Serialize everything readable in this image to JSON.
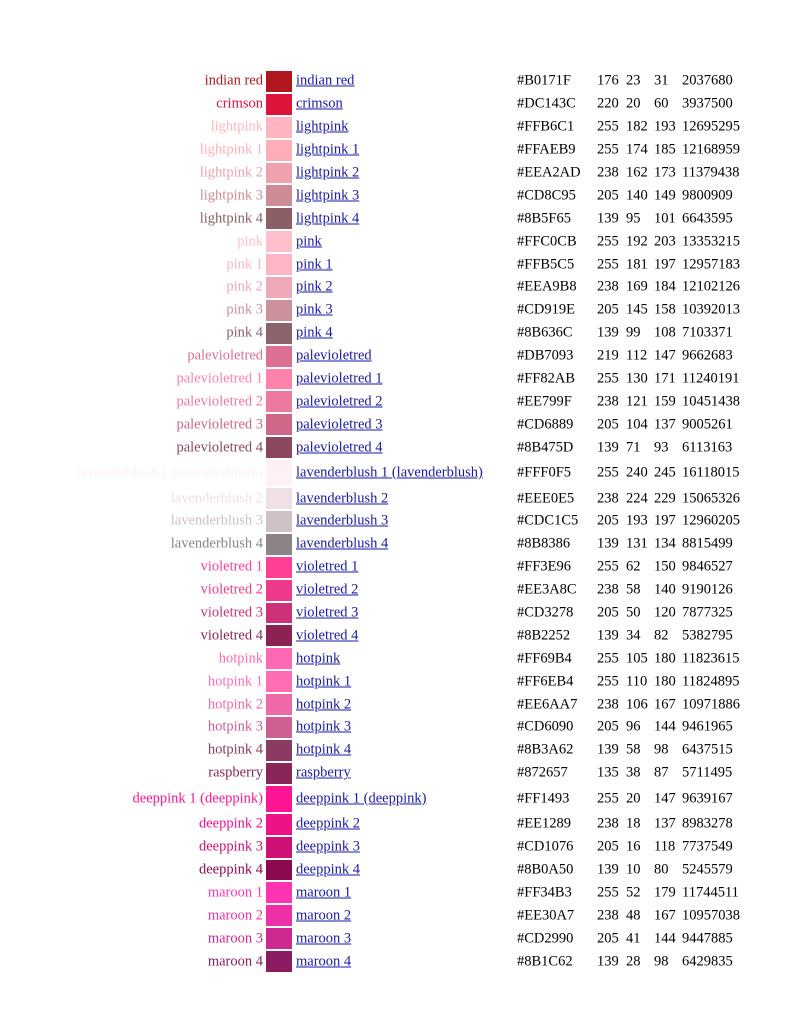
{
  "colors": [
    {
      "name": "indian red",
      "link": "indian red",
      "hex": "#B0171F",
      "r": "176",
      "g": "23",
      "b": "31",
      "dec": "2037680"
    },
    {
      "name": "crimson",
      "link": "crimson",
      "hex": "#DC143C",
      "r": "220",
      "g": "20",
      "b": "60",
      "dec": "3937500"
    },
    {
      "name": "lightpink",
      "link": "lightpink",
      "hex": "#FFB6C1",
      "r": "255",
      "g": "182",
      "b": "193",
      "dec": "12695295"
    },
    {
      "name": "lightpink 1",
      "link": "lightpink 1",
      "hex": "#FFAEB9",
      "r": "255",
      "g": "174",
      "b": "185",
      "dec": "12168959"
    },
    {
      "name": "lightpink 2",
      "link": "lightpink 2",
      "hex": "#EEA2AD",
      "r": "238",
      "g": "162",
      "b": "173",
      "dec": "11379438"
    },
    {
      "name": "lightpink 3",
      "link": "lightpink 3",
      "hex": "#CD8C95",
      "r": "205",
      "g": "140",
      "b": "149",
      "dec": "9800909"
    },
    {
      "name": "lightpink 4",
      "link": "lightpink 4",
      "hex": "#8B5F65",
      "r": "139",
      "g": "95",
      "b": "101",
      "dec": "6643595"
    },
    {
      "name": "pink",
      "link": "pink",
      "hex": "#FFC0CB",
      "r": "255",
      "g": "192",
      "b": "203",
      "dec": "13353215"
    },
    {
      "name": "pink 1",
      "link": "pink 1",
      "hex": "#FFB5C5",
      "r": "255",
      "g": "181",
      "b": "197",
      "dec": "12957183"
    },
    {
      "name": "pink 2",
      "link": "pink 2",
      "hex": "#EEA9B8",
      "r": "238",
      "g": "169",
      "b": "184",
      "dec": "12102126"
    },
    {
      "name": "pink 3",
      "link": "pink 3",
      "hex": "#CD919E",
      "r": "205",
      "g": "145",
      "b": "158",
      "dec": "10392013"
    },
    {
      "name": "pink 4",
      "link": "pink 4",
      "hex": "#8B636C",
      "r": "139",
      "g": "99",
      "b": "108",
      "dec": "7103371"
    },
    {
      "name": "palevioletred",
      "link": "palevioletred",
      "hex": "#DB7093",
      "r": "219",
      "g": "112",
      "b": "147",
      "dec": "9662683"
    },
    {
      "name": "palevioletred 1",
      "link": "palevioletred 1",
      "hex": "#FF82AB",
      "r": "255",
      "g": "130",
      "b": "171",
      "dec": "11240191"
    },
    {
      "name": "palevioletred 2",
      "link": "palevioletred 2",
      "hex": "#EE799F",
      "r": "238",
      "g": "121",
      "b": "159",
      "dec": "10451438"
    },
    {
      "name": "palevioletred 3",
      "link": "palevioletred 3",
      "hex": "#CD6889",
      "r": "205",
      "g": "104",
      "b": "137",
      "dec": "9005261"
    },
    {
      "name": "palevioletred 4",
      "link": "palevioletred 4",
      "hex": "#8B475D",
      "r": "139",
      "g": "71",
      "b": "93",
      "dec": "6113163"
    },
    {
      "name": "lavenderblush 1 (lavenderblush)",
      "link": "lavenderblush 1 (lavenderblush)",
      "hex": "#FFF0F5",
      "r": "255",
      "g": "240",
      "b": "245",
      "dec": "16118015",
      "tall": true
    },
    {
      "name": "lavenderblush 2",
      "link": "lavenderblush 2",
      "hex": "#EEE0E5",
      "r": "238",
      "g": "224",
      "b": "229",
      "dec": "15065326"
    },
    {
      "name": "lavenderblush 3",
      "link": "lavenderblush 3",
      "hex": "#CDC1C5",
      "r": "205",
      "g": "193",
      "b": "197",
      "dec": "12960205"
    },
    {
      "name": "lavenderblush 4",
      "link": "lavenderblush 4",
      "hex": "#8B8386",
      "r": "139",
      "g": "131",
      "b": "134",
      "dec": "8815499"
    },
    {
      "name": "violetred 1",
      "link": "violetred 1",
      "hex": "#FF3E96",
      "r": "255",
      "g": "62",
      "b": "150",
      "dec": "9846527"
    },
    {
      "name": "violetred 2",
      "link": "violetred 2",
      "hex": "#EE3A8C",
      "r": "238",
      "g": "58",
      "b": "140",
      "dec": "9190126"
    },
    {
      "name": "violetred 3",
      "link": "violetred 3",
      "hex": "#CD3278",
      "r": "205",
      "g": "50",
      "b": "120",
      "dec": "7877325"
    },
    {
      "name": "violetred 4",
      "link": "violetred 4",
      "hex": "#8B2252",
      "r": "139",
      "g": "34",
      "b": "82",
      "dec": "5382795"
    },
    {
      "name": "hotpink",
      "link": "hotpink",
      "hex": "#FF69B4",
      "r": "255",
      "g": "105",
      "b": "180",
      "dec": "11823615"
    },
    {
      "name": "hotpink 1",
      "link": "hotpink 1",
      "hex": "#FF6EB4",
      "r": "255",
      "g": "110",
      "b": "180",
      "dec": "11824895"
    },
    {
      "name": "hotpink 2",
      "link": "hotpink 2",
      "hex": "#EE6AA7",
      "r": "238",
      "g": "106",
      "b": "167",
      "dec": "10971886"
    },
    {
      "name": "hotpink 3",
      "link": "hotpink 3",
      "hex": "#CD6090",
      "r": "205",
      "g": "96",
      "b": "144",
      "dec": "9461965"
    },
    {
      "name": "hotpink 4",
      "link": "hotpink 4",
      "hex": "#8B3A62",
      "r": "139",
      "g": "58",
      "b": "98",
      "dec": "6437515"
    },
    {
      "name": "raspberry",
      "link": "raspberry",
      "hex": "#872657",
      "r": "135",
      "g": "38",
      "b": "87",
      "dec": "5711495"
    },
    {
      "name": "deeppink 1 (deeppink)",
      "link": "deeppink 1 (deeppink)",
      "hex": "#FF1493",
      "r": "255",
      "g": "20",
      "b": "147",
      "dec": "9639167",
      "tall": true
    },
    {
      "name": "deeppink 2",
      "link": "deeppink 2",
      "hex": "#EE1289",
      "r": "238",
      "g": "18",
      "b": "137",
      "dec": "8983278"
    },
    {
      "name": "deeppink 3",
      "link": "deeppink 3",
      "hex": "#CD1076",
      "r": "205",
      "g": "16",
      "b": "118",
      "dec": "7737549"
    },
    {
      "name": "deeppink 4",
      "link": "deeppink 4",
      "hex": "#8B0A50",
      "r": "139",
      "g": "10",
      "b": "80",
      "dec": "5245579"
    },
    {
      "name": "maroon 1",
      "link": "maroon 1",
      "hex": "#FF34B3",
      "r": "255",
      "g": "52",
      "b": "179",
      "dec": "11744511"
    },
    {
      "name": "maroon 2",
      "link": "maroon 2",
      "hex": "#EE30A7",
      "r": "238",
      "g": "48",
      "b": "167",
      "dec": "10957038"
    },
    {
      "name": "maroon 3",
      "link": "maroon 3",
      "hex": "#CD2990",
      "r": "205",
      "g": "41",
      "b": "144",
      "dec": "9447885"
    },
    {
      "name": "maroon 4",
      "link": "maroon 4",
      "hex": "#8B1C62",
      "r": "139",
      "g": "28",
      "b": "98",
      "dec": "6429835"
    }
  ]
}
